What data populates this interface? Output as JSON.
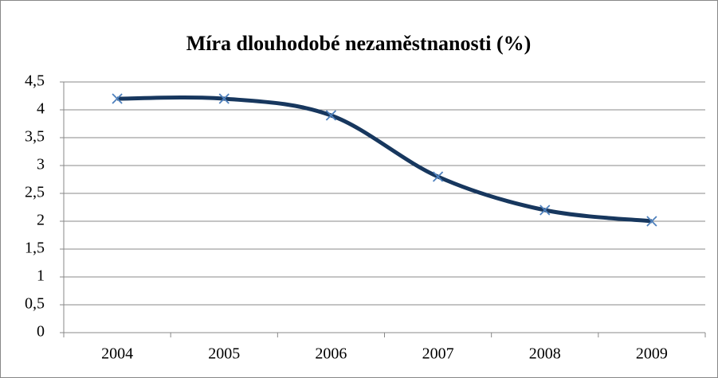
{
  "chart_data": {
    "type": "line",
    "title": "Míra dlouhodobé nezaměstnanosti (%)",
    "categories": [
      "2004",
      "2005",
      "2006",
      "2007",
      "2008",
      "2009"
    ],
    "series": [
      {
        "name": "Míra dlouhodobé nezaměstnanosti (%)",
        "color": "#17375e",
        "marker_color": "#4f81bd",
        "values": [
          4.2,
          4.2,
          3.9,
          2.8,
          2.2,
          2.0
        ]
      }
    ],
    "ylim": [
      0,
      4.5
    ],
    "yticks": [
      0,
      {
        "value": 0.5,
        "label": "0,5"
      },
      1,
      {
        "value": 1.5,
        "label": "1,5"
      },
      2,
      {
        "value": 2.5,
        "label": "2,5"
      },
      3,
      {
        "value": 3.5,
        "label": "3,5"
      },
      4,
      {
        "value": 4.5,
        "label": "4,5"
      }
    ],
    "grid": true,
    "smooth": true
  }
}
